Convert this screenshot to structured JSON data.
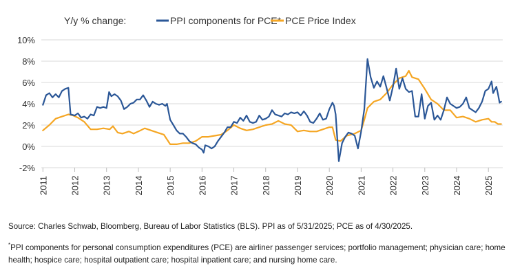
{
  "chart_data": {
    "type": "line",
    "title": "Y/y % change:",
    "x_ticks": [
      "2011",
      "2012",
      "2013",
      "2014",
      "2015",
      "2016",
      "2017",
      "2018",
      "2019",
      "2020",
      "2021",
      "2022",
      "2023",
      "2024",
      "2025"
    ],
    "y_ticks": [
      "10%",
      "8%",
      "6%",
      "4%",
      "2%",
      "0%",
      "-2%"
    ],
    "ylim": [
      -2,
      10
    ],
    "xlim": [
      2011.0,
      2025.4
    ],
    "grid": true,
    "legend_position": "top",
    "series": [
      {
        "name": "PPI components for PCE*",
        "color": "#2b5797",
        "points": [
          [
            2011.0,
            3.9
          ],
          [
            2011.1,
            4.8
          ],
          [
            2011.2,
            5.0
          ],
          [
            2011.3,
            4.6
          ],
          [
            2011.4,
            4.9
          ],
          [
            2011.5,
            4.6
          ],
          [
            2011.6,
            5.2
          ],
          [
            2011.7,
            5.4
          ],
          [
            2011.8,
            5.5
          ],
          [
            2011.87,
            3.0
          ],
          [
            2012.0,
            2.9
          ],
          [
            2012.1,
            3.1
          ],
          [
            2012.2,
            2.7
          ],
          [
            2012.3,
            2.8
          ],
          [
            2012.4,
            2.6
          ],
          [
            2012.5,
            3.0
          ],
          [
            2012.6,
            2.9
          ],
          [
            2012.7,
            3.7
          ],
          [
            2012.8,
            3.6
          ],
          [
            2012.9,
            3.7
          ],
          [
            2013.0,
            3.6
          ],
          [
            2013.08,
            5.1
          ],
          [
            2013.15,
            4.7
          ],
          [
            2013.25,
            4.9
          ],
          [
            2013.35,
            4.7
          ],
          [
            2013.45,
            4.3
          ],
          [
            2013.55,
            3.5
          ],
          [
            2013.65,
            3.7
          ],
          [
            2013.75,
            4.0
          ],
          [
            2013.85,
            4.1
          ],
          [
            2013.95,
            4.4
          ],
          [
            2014.05,
            4.4
          ],
          [
            2014.15,
            4.8
          ],
          [
            2014.25,
            4.3
          ],
          [
            2014.35,
            3.7
          ],
          [
            2014.45,
            4.2
          ],
          [
            2014.55,
            4.0
          ],
          [
            2014.65,
            3.9
          ],
          [
            2014.75,
            4.0
          ],
          [
            2014.85,
            3.8
          ],
          [
            2014.9,
            4.0
          ],
          [
            2015.0,
            2.5
          ],
          [
            2015.1,
            2.0
          ],
          [
            2015.2,
            1.5
          ],
          [
            2015.3,
            1.2
          ],
          [
            2015.4,
            1.2
          ],
          [
            2015.5,
            0.9
          ],
          [
            2015.6,
            0.5
          ],
          [
            2015.7,
            0.3
          ],
          [
            2015.8,
            0.2
          ],
          [
            2015.9,
            -0.1
          ],
          [
            2016.0,
            -0.3
          ],
          [
            2016.05,
            -0.6
          ],
          [
            2016.1,
            0.1
          ],
          [
            2016.2,
            0.0
          ],
          [
            2016.3,
            -0.2
          ],
          [
            2016.4,
            0.0
          ],
          [
            2016.5,
            0.5
          ],
          [
            2016.6,
            0.9
          ],
          [
            2016.7,
            1.3
          ],
          [
            2016.8,
            1.8
          ],
          [
            2016.9,
            1.8
          ],
          [
            2017.0,
            2.3
          ],
          [
            2017.1,
            2.2
          ],
          [
            2017.2,
            2.7
          ],
          [
            2017.3,
            2.4
          ],
          [
            2017.4,
            2.9
          ],
          [
            2017.5,
            2.3
          ],
          [
            2017.6,
            2.2
          ],
          [
            2017.7,
            2.3
          ],
          [
            2017.8,
            2.9
          ],
          [
            2017.9,
            2.5
          ],
          [
            2018.0,
            2.6
          ],
          [
            2018.1,
            2.8
          ],
          [
            2018.2,
            3.4
          ],
          [
            2018.3,
            3.0
          ],
          [
            2018.4,
            2.9
          ],
          [
            2018.5,
            2.8
          ],
          [
            2018.6,
            3.1
          ],
          [
            2018.7,
            3.0
          ],
          [
            2018.8,
            3.2
          ],
          [
            2018.9,
            3.1
          ],
          [
            2019.0,
            3.2
          ],
          [
            2019.1,
            2.9
          ],
          [
            2019.2,
            3.3
          ],
          [
            2019.3,
            2.9
          ],
          [
            2019.4,
            2.3
          ],
          [
            2019.5,
            2.2
          ],
          [
            2019.6,
            2.6
          ],
          [
            2019.7,
            3.1
          ],
          [
            2019.8,
            2.5
          ],
          [
            2019.9,
            2.6
          ],
          [
            2020.0,
            3.5
          ],
          [
            2020.1,
            4.1
          ],
          [
            2020.15,
            3.8
          ],
          [
            2020.2,
            3.0
          ],
          [
            2020.3,
            -1.4
          ],
          [
            2020.4,
            0.3
          ],
          [
            2020.5,
            0.9
          ],
          [
            2020.6,
            1.3
          ],
          [
            2020.7,
            1.2
          ],
          [
            2020.8,
            1.0
          ],
          [
            2020.9,
            -0.2
          ],
          [
            2021.0,
            1.4
          ],
          [
            2021.1,
            3.5
          ],
          [
            2021.2,
            8.2
          ],
          [
            2021.3,
            6.5
          ],
          [
            2021.4,
            5.5
          ],
          [
            2021.5,
            6.1
          ],
          [
            2021.6,
            5.6
          ],
          [
            2021.7,
            6.6
          ],
          [
            2021.8,
            5.5
          ],
          [
            2021.9,
            4.3
          ],
          [
            2022.0,
            5.6
          ],
          [
            2022.1,
            7.3
          ],
          [
            2022.2,
            5.4
          ],
          [
            2022.3,
            6.4
          ],
          [
            2022.4,
            5.4
          ],
          [
            2022.5,
            5.1
          ],
          [
            2022.6,
            5.2
          ],
          [
            2022.7,
            2.8
          ],
          [
            2022.8,
            2.8
          ],
          [
            2022.9,
            4.9
          ],
          [
            2023.0,
            2.6
          ],
          [
            2023.1,
            3.8
          ],
          [
            2023.2,
            4.1
          ],
          [
            2023.3,
            2.5
          ],
          [
            2023.4,
            2.9
          ],
          [
            2023.5,
            2.5
          ],
          [
            2023.6,
            3.4
          ],
          [
            2023.7,
            4.6
          ],
          [
            2023.8,
            4.0
          ],
          [
            2023.9,
            3.8
          ],
          [
            2024.0,
            3.6
          ],
          [
            2024.1,
            3.7
          ],
          [
            2024.2,
            4.0
          ],
          [
            2024.3,
            4.6
          ],
          [
            2024.4,
            3.6
          ],
          [
            2024.5,
            3.4
          ],
          [
            2024.6,
            3.2
          ],
          [
            2024.7,
            3.6
          ],
          [
            2024.8,
            4.2
          ],
          [
            2024.9,
            5.2
          ],
          [
            2025.0,
            5.4
          ],
          [
            2025.1,
            6.1
          ],
          [
            2025.15,
            5.0
          ],
          [
            2025.25,
            5.6
          ],
          [
            2025.3,
            4.9
          ],
          [
            2025.35,
            4.1
          ],
          [
            2025.4,
            4.2
          ]
        ]
      },
      {
        "name": "PCE Price Index",
        "color": "#f5a623",
        "points": [
          [
            2011.0,
            1.5
          ],
          [
            2011.2,
            2.0
          ],
          [
            2011.4,
            2.6
          ],
          [
            2011.6,
            2.8
          ],
          [
            2011.8,
            3.0
          ],
          [
            2011.95,
            2.9
          ],
          [
            2012.1,
            2.7
          ],
          [
            2012.3,
            2.3
          ],
          [
            2012.5,
            1.6
          ],
          [
            2012.7,
            1.6
          ],
          [
            2012.9,
            1.7
          ],
          [
            2013.1,
            1.6
          ],
          [
            2013.2,
            1.9
          ],
          [
            2013.35,
            1.3
          ],
          [
            2013.5,
            1.2
          ],
          [
            2013.7,
            1.4
          ],
          [
            2013.85,
            1.2
          ],
          [
            2014.0,
            1.4
          ],
          [
            2014.2,
            1.7
          ],
          [
            2014.4,
            1.5
          ],
          [
            2014.6,
            1.3
          ],
          [
            2014.8,
            1.1
          ],
          [
            2015.0,
            0.2
          ],
          [
            2015.2,
            0.2
          ],
          [
            2015.4,
            0.3
          ],
          [
            2015.6,
            0.3
          ],
          [
            2015.8,
            0.5
          ],
          [
            2016.0,
            0.9
          ],
          [
            2016.2,
            0.9
          ],
          [
            2016.4,
            1.0
          ],
          [
            2016.6,
            1.1
          ],
          [
            2016.8,
            1.5
          ],
          [
            2017.0,
            2.0
          ],
          [
            2017.2,
            1.7
          ],
          [
            2017.4,
            1.5
          ],
          [
            2017.6,
            1.6
          ],
          [
            2017.8,
            1.8
          ],
          [
            2018.0,
            2.0
          ],
          [
            2018.2,
            2.1
          ],
          [
            2018.4,
            2.4
          ],
          [
            2018.6,
            2.1
          ],
          [
            2018.8,
            2.0
          ],
          [
            2019.0,
            1.4
          ],
          [
            2019.2,
            1.5
          ],
          [
            2019.4,
            1.4
          ],
          [
            2019.6,
            1.4
          ],
          [
            2019.8,
            1.6
          ],
          [
            2020.0,
            1.8
          ],
          [
            2020.1,
            1.8
          ],
          [
            2020.2,
            0.6
          ],
          [
            2020.35,
            0.5
          ],
          [
            2020.55,
            1.0
          ],
          [
            2020.8,
            1.2
          ],
          [
            2021.0,
            1.5
          ],
          [
            2021.1,
            2.5
          ],
          [
            2021.2,
            3.6
          ],
          [
            2021.4,
            4.2
          ],
          [
            2021.6,
            4.4
          ],
          [
            2021.8,
            5.0
          ],
          [
            2022.0,
            5.8
          ],
          [
            2022.2,
            6.4
          ],
          [
            2022.4,
            6.6
          ],
          [
            2022.5,
            7.1
          ],
          [
            2022.6,
            6.5
          ],
          [
            2022.8,
            6.3
          ],
          [
            2023.0,
            5.4
          ],
          [
            2023.2,
            4.4
          ],
          [
            2023.4,
            4.0
          ],
          [
            2023.6,
            3.4
          ],
          [
            2023.8,
            3.4
          ],
          [
            2024.0,
            2.7
          ],
          [
            2024.2,
            2.8
          ],
          [
            2024.4,
            2.6
          ],
          [
            2024.6,
            2.3
          ],
          [
            2024.8,
            2.5
          ],
          [
            2025.0,
            2.6
          ],
          [
            2025.1,
            2.3
          ],
          [
            2025.2,
            2.3
          ],
          [
            2025.3,
            2.1
          ],
          [
            2025.4,
            2.1
          ]
        ]
      }
    ]
  },
  "notes": {
    "source": "Source: Charles Schwab, Bloomberg, Bureau of Labor Statistics (BLS). PPI as of 5/31/2025; PCE as of 4/30/2025.",
    "footnote_mark": "*",
    "footnote": "PPI components for personal consumption expenditures (PCE) are airliner passenger services; portfolio management; physician care; home health; hospice care; hospital outpatient care; hospital inpatient care; and nursing home care."
  }
}
